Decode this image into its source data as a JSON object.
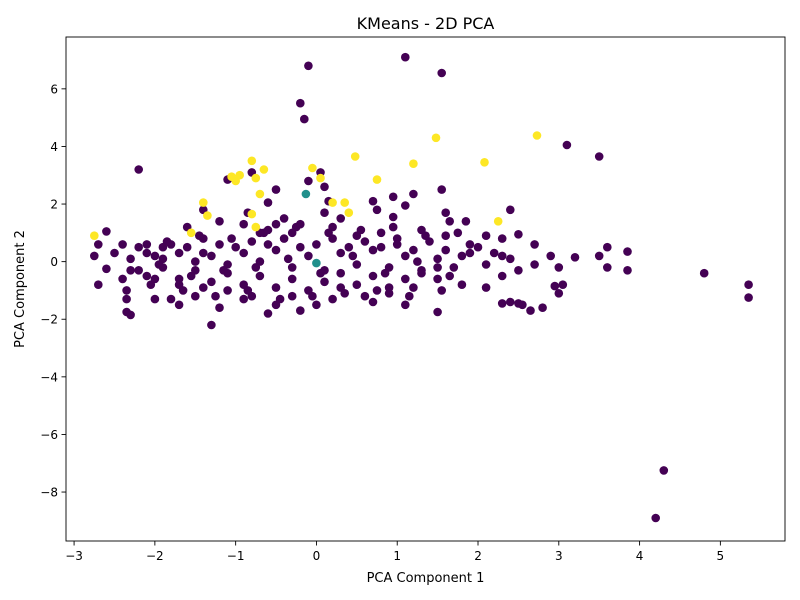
{
  "chart_data": {
    "type": "scatter",
    "title": "KMeans - 2D PCA",
    "xlabel": "PCA Component 1",
    "ylabel": "PCA Component 2",
    "xlim": [
      -3.1,
      5.8
    ],
    "ylim": [
      -9.7,
      7.8
    ],
    "xticks": [
      -3,
      -2,
      -1,
      0,
      1,
      2,
      3,
      4,
      5
    ],
    "yticks": [
      -8,
      -6,
      -4,
      -2,
      0,
      2,
      4,
      6
    ],
    "grid": false,
    "legend": "none",
    "colors": {
      "cluster_0": "#440154",
      "cluster_1": "#fde725",
      "centroid": "#21908c",
      "axes": "#000000"
    },
    "series": [
      {
        "cluster": 0,
        "color": "#440154",
        "points": [
          [
            -0.1,
            6.8
          ],
          [
            1.1,
            7.1
          ],
          [
            1.55,
            6.55
          ],
          [
            -0.2,
            5.5
          ],
          [
            -0.15,
            4.95
          ],
          [
            -2.2,
            3.2
          ],
          [
            3.1,
            4.05
          ],
          [
            3.5,
            3.65
          ],
          [
            -1.1,
            2.85
          ],
          [
            0.05,
            3.1
          ],
          [
            -0.1,
            2.8
          ],
          [
            0.1,
            2.6
          ],
          [
            1.55,
            2.5
          ],
          [
            1.2,
            2.35
          ],
          [
            0.95,
            2.25
          ],
          [
            0.7,
            2.1
          ],
          [
            2.4,
            1.8
          ],
          [
            1.1,
            1.95
          ],
          [
            -0.6,
            2.05
          ],
          [
            -0.5,
            2.5
          ],
          [
            -2.7,
            0.6
          ],
          [
            -2.75,
            0.2
          ],
          [
            -2.6,
            1.05
          ],
          [
            -2.6,
            -0.25
          ],
          [
            -2.7,
            -0.8
          ],
          [
            -2.35,
            -1.0
          ],
          [
            -2.35,
            -1.3
          ],
          [
            -2.35,
            -1.75
          ],
          [
            -2.3,
            -1.85
          ],
          [
            -2.1,
            0.6
          ],
          [
            -1.9,
            0.5
          ],
          [
            -1.8,
            -1.3
          ],
          [
            -1.7,
            -1.5
          ],
          [
            -1.3,
            -2.2
          ],
          [
            -1.6,
            1.2
          ],
          [
            -1.4,
            0.8
          ],
          [
            -1.2,
            1.4
          ],
          [
            -0.9,
            1.3
          ],
          [
            -0.6,
            1.1
          ],
          [
            -0.3,
            1.0
          ],
          [
            0.2,
            1.2
          ],
          [
            0.5,
            0.9
          ],
          [
            0.8,
            1.0
          ],
          [
            1.0,
            0.8
          ],
          [
            1.3,
            1.1
          ],
          [
            1.6,
            0.9
          ],
          [
            1.9,
            0.6
          ],
          [
            2.1,
            0.9
          ],
          [
            2.3,
            0.8
          ],
          [
            2.5,
            0.95
          ],
          [
            2.7,
            0.6
          ],
          [
            2.9,
            0.2
          ],
          [
            3.2,
            0.15
          ],
          [
            3.5,
            0.2
          ],
          [
            3.6,
            0.5
          ],
          [
            3.85,
            0.35
          ],
          [
            3.85,
            -0.3
          ],
          [
            3.6,
            -0.2
          ],
          [
            3.0,
            -0.2
          ],
          [
            2.7,
            -0.1
          ],
          [
            2.5,
            -0.3
          ],
          [
            2.3,
            -0.5
          ],
          [
            2.1,
            -0.9
          ],
          [
            1.8,
            -0.8
          ],
          [
            1.5,
            -0.6
          ],
          [
            1.2,
            -0.9
          ],
          [
            0.9,
            -1.1
          ],
          [
            0.6,
            -1.2
          ],
          [
            0.3,
            -0.9
          ],
          [
            0.0,
            -1.5
          ],
          [
            -0.2,
            -1.7
          ],
          [
            -0.5,
            -1.5
          ],
          [
            -0.8,
            -1.2
          ],
          [
            -1.1,
            -1.0
          ],
          [
            -1.4,
            -0.9
          ],
          [
            -1.7,
            -0.8
          ],
          [
            -2.0,
            -0.6
          ],
          [
            -2.2,
            -0.3
          ],
          [
            -2.4,
            -0.6
          ],
          [
            -2.0,
            -1.3
          ],
          [
            -1.5,
            -1.2
          ],
          [
            -1.2,
            -1.6
          ],
          [
            -0.9,
            -1.3
          ],
          [
            -0.6,
            -1.8
          ],
          [
            -0.3,
            -1.2
          ],
          [
            0.2,
            -1.3
          ],
          [
            0.7,
            -1.4
          ],
          [
            1.1,
            -1.5
          ],
          [
            1.5,
            -1.75
          ],
          [
            2.4,
            -1.4
          ],
          [
            2.55,
            -1.5
          ],
          [
            2.65,
            -1.7
          ],
          [
            2.8,
            -1.6
          ],
          [
            3.0,
            -1.1
          ],
          [
            3.05,
            -0.8
          ],
          [
            2.95,
            -0.85
          ],
          [
            2.5,
            -1.45
          ],
          [
            2.3,
            -1.45
          ],
          [
            4.8,
            -0.4
          ],
          [
            5.35,
            -0.8
          ],
          [
            5.35,
            -1.25
          ],
          [
            4.3,
            -7.25
          ],
          [
            4.2,
            -8.9
          ],
          [
            -2.5,
            0.3
          ],
          [
            -2.3,
            0.1
          ],
          [
            -2.1,
            0.3
          ],
          [
            -1.9,
            0.1
          ],
          [
            -1.7,
            0.3
          ],
          [
            -1.5,
            0.0
          ],
          [
            -1.3,
            0.2
          ],
          [
            -1.1,
            -0.1
          ],
          [
            -0.9,
            0.3
          ],
          [
            -0.7,
            0.0
          ],
          [
            -0.5,
            0.4
          ],
          [
            -0.3,
            -0.2
          ],
          [
            -0.1,
            0.2
          ],
          [
            0.1,
            -0.3
          ],
          [
            0.3,
            0.3
          ],
          [
            0.5,
            -0.1
          ],
          [
            0.7,
            0.4
          ],
          [
            0.9,
            -0.2
          ],
          [
            1.1,
            0.2
          ],
          [
            1.3,
            -0.3
          ],
          [
            1.5,
            0.1
          ],
          [
            1.7,
            -0.2
          ],
          [
            1.9,
            0.3
          ],
          [
            2.1,
            -0.1
          ],
          [
            2.3,
            0.2
          ],
          [
            -2.3,
            -0.3
          ],
          [
            -2.1,
            -0.5
          ],
          [
            -1.9,
            -0.2
          ],
          [
            -1.7,
            -0.6
          ],
          [
            -1.5,
            -0.3
          ],
          [
            -1.3,
            -0.7
          ],
          [
            -1.1,
            -0.4
          ],
          [
            -0.9,
            -0.8
          ],
          [
            -0.7,
            -0.5
          ],
          [
            -0.5,
            -0.9
          ],
          [
            -0.3,
            -0.6
          ],
          [
            -0.1,
            -1.0
          ],
          [
            0.1,
            -0.7
          ],
          [
            0.3,
            -0.4
          ],
          [
            0.5,
            -0.8
          ],
          [
            0.7,
            -0.5
          ],
          [
            0.9,
            -0.9
          ],
          [
            1.1,
            -0.6
          ],
          [
            1.3,
            -0.4
          ],
          [
            1.5,
            -0.2
          ],
          [
            -2.4,
            0.6
          ],
          [
            -2.2,
            0.5
          ],
          [
            -2.0,
            0.2
          ],
          [
            -1.8,
            0.6
          ],
          [
            -1.6,
            0.5
          ],
          [
            -1.4,
            0.3
          ],
          [
            -1.2,
            0.6
          ],
          [
            -1.0,
            0.5
          ],
          [
            -0.8,
            0.7
          ],
          [
            -0.6,
            0.6
          ],
          [
            -0.4,
            0.8
          ],
          [
            -0.2,
            0.5
          ],
          [
            0.0,
            0.6
          ],
          [
            0.2,
            0.8
          ],
          [
            0.4,
            0.5
          ],
          [
            0.6,
            0.7
          ],
          [
            0.8,
            0.5
          ],
          [
            1.0,
            0.6
          ],
          [
            1.2,
            0.4
          ],
          [
            1.4,
            0.7
          ],
          [
            1.6,
            0.4
          ],
          [
            1.8,
            0.2
          ],
          [
            2.0,
            0.5
          ],
          [
            2.2,
            0.3
          ],
          [
            2.4,
            0.1
          ],
          [
            -1.95,
            -0.1
          ],
          [
            -1.55,
            -0.5
          ],
          [
            -1.15,
            -0.3
          ],
          [
            -0.75,
            -0.2
          ],
          [
            -0.35,
            0.1
          ],
          [
            0.05,
            -0.4
          ],
          [
            0.45,
            0.2
          ],
          [
            0.85,
            -0.4
          ],
          [
            1.25,
            0.0
          ],
          [
            1.65,
            -0.5
          ],
          [
            -2.05,
            -0.8
          ],
          [
            -1.65,
            -1.0
          ],
          [
            -1.25,
            -1.2
          ],
          [
            -0.85,
            -1.0
          ],
          [
            -0.45,
            -1.3
          ],
          [
            -0.05,
            -1.2
          ],
          [
            0.35,
            -1.1
          ],
          [
            0.75,
            -1.0
          ],
          [
            1.15,
            -1.2
          ],
          [
            1.55,
            -1.0
          ],
          [
            -1.85,
            0.7
          ],
          [
            -1.45,
            0.9
          ],
          [
            -1.05,
            0.8
          ],
          [
            -0.65,
            1.0
          ],
          [
            -0.25,
            1.2
          ],
          [
            0.15,
            1.0
          ],
          [
            0.55,
            1.1
          ],
          [
            0.95,
            1.2
          ],
          [
            1.35,
            0.9
          ],
          [
            1.75,
            1.0
          ],
          [
            -0.5,
            1.3
          ],
          [
            -0.4,
            1.5
          ],
          [
            -0.2,
            1.3
          ],
          [
            0.1,
            1.7
          ],
          [
            0.3,
            1.5
          ],
          [
            0.75,
            1.8
          ],
          [
            0.95,
            1.55
          ],
          [
            1.65,
            1.4
          ],
          [
            1.85,
            1.4
          ],
          [
            1.6,
            1.7
          ],
          [
            -0.8,
            3.1
          ],
          [
            -0.85,
            1.7
          ],
          [
            -0.7,
            1.0
          ],
          [
            -1.4,
            1.8
          ],
          [
            0.15,
            2.1
          ]
        ]
      },
      {
        "cluster": 1,
        "color": "#fde725",
        "points": [
          [
            -2.75,
            0.9
          ],
          [
            -1.4,
            2.05
          ],
          [
            -1.35,
            1.6
          ],
          [
            -1.05,
            2.95
          ],
          [
            -1.0,
            2.8
          ],
          [
            -0.95,
            3.0
          ],
          [
            -0.8,
            3.5
          ],
          [
            -0.75,
            2.9
          ],
          [
            -0.7,
            2.35
          ],
          [
            -0.65,
            3.2
          ],
          [
            -0.05,
            3.25
          ],
          [
            0.05,
            2.9
          ],
          [
            0.2,
            2.05
          ],
          [
            0.35,
            2.05
          ],
          [
            0.4,
            1.7
          ],
          [
            0.48,
            3.65
          ],
          [
            0.75,
            2.85
          ],
          [
            1.2,
            3.4
          ],
          [
            1.48,
            4.3
          ],
          [
            2.08,
            3.45
          ],
          [
            2.25,
            1.4
          ],
          [
            2.73,
            4.38
          ],
          [
            -0.8,
            1.65
          ],
          [
            -0.75,
            1.2
          ],
          [
            -1.55,
            1.0
          ]
        ]
      },
      {
        "cluster": 2,
        "color": "#21908c",
        "points": [
          [
            -0.13,
            2.35
          ],
          [
            0.0,
            -0.05
          ]
        ]
      }
    ]
  }
}
